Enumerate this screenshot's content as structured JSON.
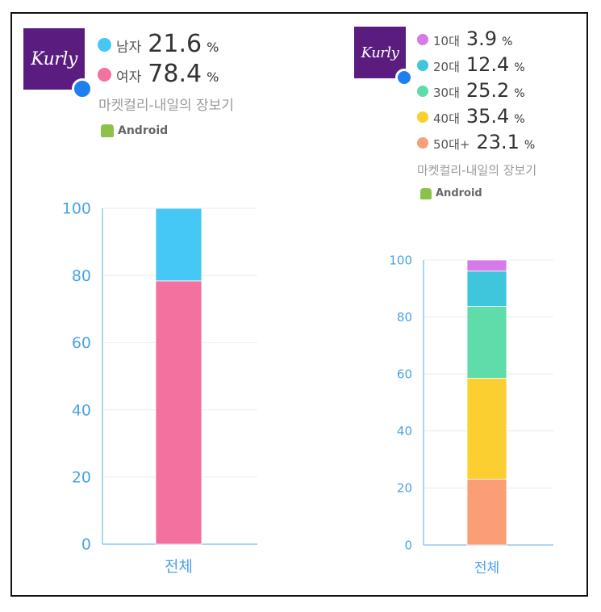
{
  "charts": [
    {
      "app_name": "마켓컬리-내일의 장보기",
      "platform": "Android",
      "logo_text": "Kurly",
      "legend": [
        {
          "label": "남자",
          "value": "21.6",
          "unit": "%",
          "color": "#45c8f5"
        },
        {
          "label": "여자",
          "value": "78.4",
          "unit": "%",
          "color": "#f2719f"
        }
      ]
    },
    {
      "app_name": "마켓컬리-내일의 장보기",
      "platform": "Android",
      "logo_text": "Kurly",
      "legend": [
        {
          "label": "10대",
          "value": "3.9",
          "unit": "%",
          "color": "#d57ae8"
        },
        {
          "label": "20대",
          "value": "12.4",
          "unit": "%",
          "color": "#3fc6dc"
        },
        {
          "label": "30대",
          "value": "25.2",
          "unit": "%",
          "color": "#5fdcaa"
        },
        {
          "label": "40대",
          "value": "35.4",
          "unit": "%",
          "color": "#fbcf2f"
        },
        {
          "label": "50대+",
          "value": "23.1",
          "unit": "%",
          "color": "#fb9d77"
        }
      ]
    }
  ],
  "chart_data": [
    {
      "type": "bar",
      "stacked": true,
      "categories": [
        "전체"
      ],
      "series": [
        {
          "name": "여자",
          "values": [
            78.4
          ],
          "color": "#f2719f"
        },
        {
          "name": "남자",
          "values": [
            21.6
          ],
          "color": "#45c8f5"
        }
      ],
      "ylim": [
        0,
        100
      ],
      "yticks": [
        0,
        20,
        40,
        60,
        80,
        100
      ],
      "grid": true
    },
    {
      "type": "bar",
      "stacked": true,
      "categories": [
        "전체"
      ],
      "series": [
        {
          "name": "50대+",
          "values": [
            23.1
          ],
          "color": "#fb9d77"
        },
        {
          "name": "40대",
          "values": [
            35.4
          ],
          "color": "#fbcf2f"
        },
        {
          "name": "30대",
          "values": [
            25.2
          ],
          "color": "#5fdcaa"
        },
        {
          "name": "20대",
          "values": [
            12.4
          ],
          "color": "#3fc6dc"
        },
        {
          "name": "10대",
          "values": [
            3.9
          ],
          "color": "#d57ae8"
        }
      ],
      "ylim": [
        0,
        100
      ],
      "yticks": [
        0,
        20,
        40,
        60,
        80,
        100
      ],
      "grid": true
    }
  ]
}
